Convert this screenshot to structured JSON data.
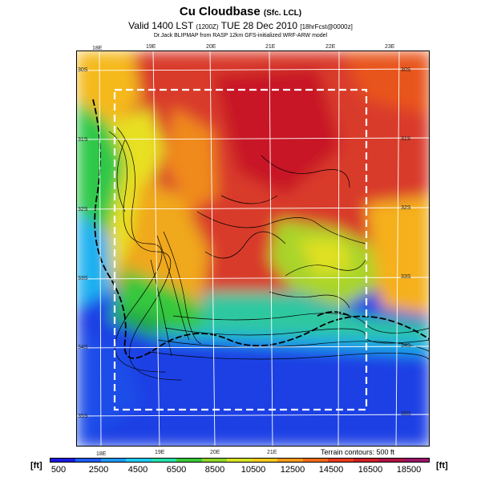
{
  "header": {
    "title": "Cu Cloudbase",
    "title_suffix": "(Sfc. LCL)",
    "valid_prefix": "Valid 1400 LST",
    "valid_code": "(1200Z)",
    "valid_date": "TUE 28 Dec 2010",
    "valid_suffix": "[18hrFcst@0000z]",
    "subtitle": "Dr.Jack BLIPMAP from RASP 12km GFS-initialized WRF-ARW model"
  },
  "map": {
    "lon_labels_top": [
      "18E",
      "19E",
      "20E",
      "21E",
      "22E",
      "23E"
    ],
    "lon_labels_bottom": [
      "18E",
      "19E",
      "20E",
      "21E"
    ],
    "lat_labels_left": [
      "30S",
      "31S",
      "32S",
      "33S",
      "34S",
      "35S"
    ],
    "lat_labels_right": [
      "30S",
      "31S",
      "32S",
      "33S",
      "34S",
      "35S"
    ],
    "terrain_note": "Terrain contours: 500 ft"
  },
  "colorbar": {
    "unit": "[ft]",
    "labels": [
      "500",
      "2500",
      "4500",
      "6500",
      "8500",
      "10500",
      "12500",
      "14500",
      "16500",
      "18500"
    ],
    "colors": [
      "#1a1ae0",
      "#1f5cf2",
      "#1f97f5",
      "#1fc9f0",
      "#26dfa8",
      "#39c839",
      "#8fd42a",
      "#d6e022",
      "#f5c81c",
      "#f59a1a",
      "#f06a19",
      "#e83a1b",
      "#cf1f28",
      "#b01444",
      "#9a1466"
    ]
  }
}
